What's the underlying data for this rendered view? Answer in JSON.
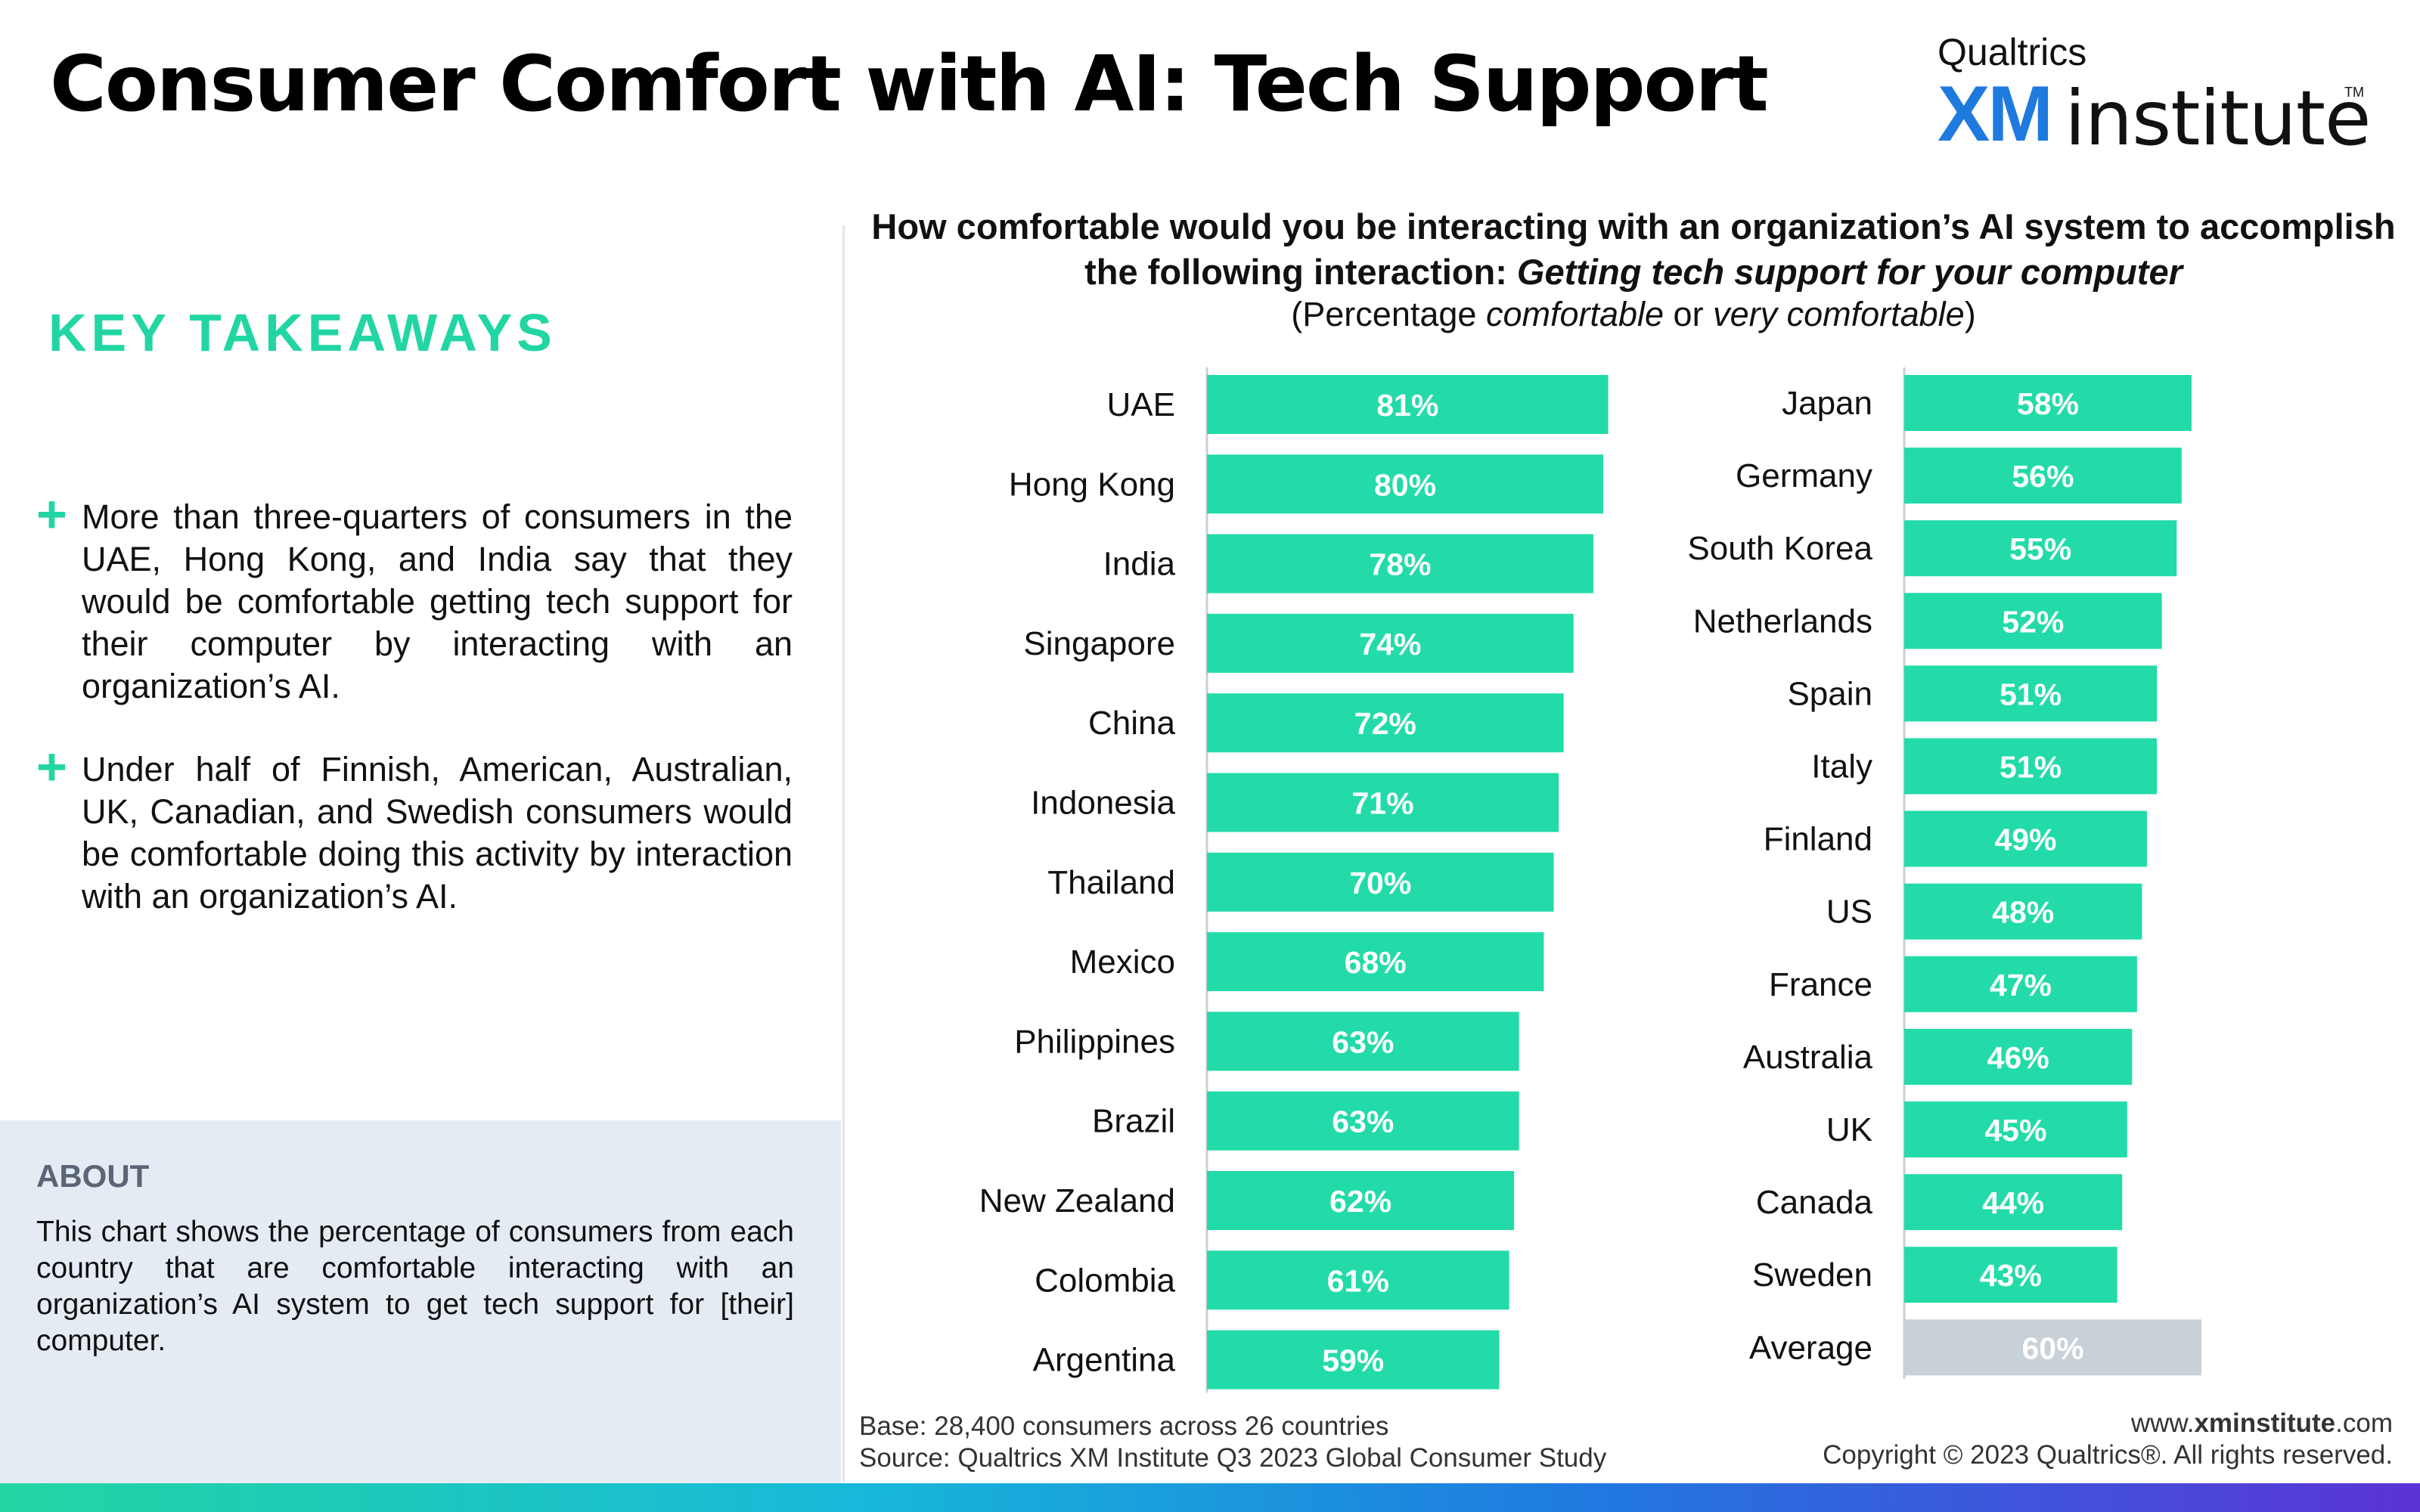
{
  "header": {
    "title": "Consumer Comfort with AI: Tech Support",
    "logo": {
      "top": "Qualtrics",
      "xm": "XM",
      "institute": "institute",
      "tm": "TM"
    }
  },
  "sidebar": {
    "takeaways_heading": "KEY TAKEAWAYS",
    "plus_symbol": "+",
    "takeaways": [
      "More than three-quarters of consumers in the UAE, Hong Kong, and India say that they would be comfortable getting tech support for their computer by interacting with an organization’s AI.",
      "Under half of Finnish, American, Australian, UK, Canadian, and Swedish consumers would be comfortable doing this activity by interaction with an organization’s AI."
    ],
    "about_heading": "ABOUT",
    "about_text": "This chart shows the percentage of consumers from each country that are comfortable interacting with an organization’s AI system to get tech support for [their] computer."
  },
  "chart_data": {
    "type": "bar",
    "orientation": "horizontal",
    "title_line1": "How comfortable would you be interacting with an organization’s AI system to accomplish",
    "title_line2_prefix": "the following interaction: ",
    "title_line2_emphasis": "Getting tech support for your computer",
    "subtitle_open": "(Percentage ",
    "subtitle_em1": "comfortable",
    "subtitle_or": " or ",
    "subtitle_em2": "very comfortable",
    "subtitle_close": ")",
    "value_suffix": "%",
    "xlim": [
      0,
      100
    ],
    "bar_color": "#22dba9",
    "average_color": "#c8d0d8",
    "panels": [
      {
        "categories": [
          "UAE",
          "Hong Kong",
          "India",
          "Singapore",
          "China",
          "Indonesia",
          "Thailand",
          "Mexico",
          "Philippines",
          "Brazil",
          "New Zealand",
          "Colombia",
          "Argentina"
        ],
        "values": [
          81,
          80,
          78,
          74,
          72,
          71,
          70,
          68,
          63,
          63,
          62,
          61,
          59
        ]
      },
      {
        "categories": [
          "Japan",
          "Germany",
          "South Korea",
          "Netherlands",
          "Spain",
          "Italy",
          "Finland",
          "US",
          "France",
          "Australia",
          "UK",
          "Canada",
          "Sweden",
          "Average"
        ],
        "values": [
          58,
          56,
          55,
          52,
          51,
          51,
          49,
          48,
          47,
          46,
          45,
          44,
          43,
          60
        ]
      }
    ]
  },
  "footer": {
    "base": "Base: 28,400 consumers across 26 countries",
    "source": "Source: Qualtrics XM Institute Q3 2023 Global Consumer Study",
    "url_prefix": "www.",
    "url_bold": "xminstitute",
    "url_suffix": ".com",
    "copyright": "Copyright © 2023 Qualtrics®. All rights reserved."
  }
}
